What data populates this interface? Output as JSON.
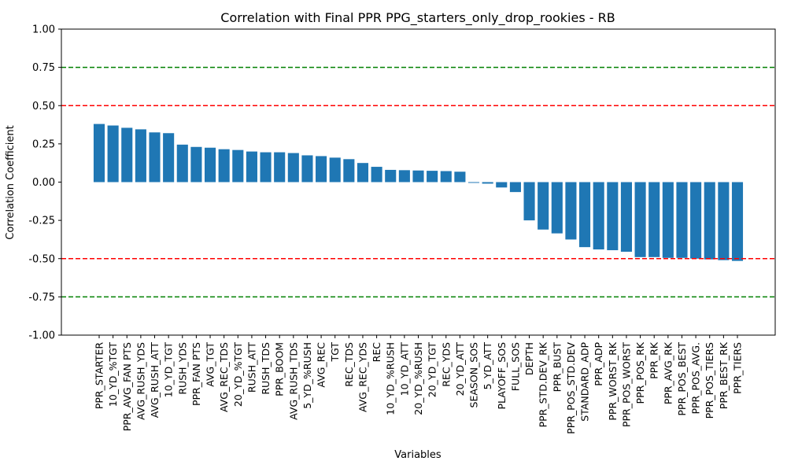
{
  "chart_data": {
    "type": "bar",
    "title": "Correlation with Final PPR PPG_starters_only_drop_rookies - RB",
    "xlabel": "Variables",
    "ylabel": "Correlation Coefficient",
    "ylim": [
      -1.0,
      1.0
    ],
    "yticks": [
      "-1.00",
      "-0.75",
      "-0.50",
      "-0.25",
      "0.00",
      "0.25",
      "0.50",
      "0.75",
      "1.00"
    ],
    "bar_color": "#1f77b4",
    "grid": false,
    "categories": [
      "PPR_STARTER",
      "10_YD_%TGT",
      "PPR_AVG_FAN PTS",
      "AVG_RUSH_YDS",
      "AVG_RUSH_ATT",
      "10_YD_TGT",
      "RUSH_YDS",
      "PPR_FAN PTS",
      "AVG_TGT",
      "AVG_REC_TDS",
      "20_YD_%TGT",
      "RUSH_ATT",
      "RUSH_TDS",
      "PPR_BOOM",
      "AVG_RUSH_TDS",
      "5_YD_%RUSH",
      "AVG_REC",
      "TGT",
      "REC_TDS",
      "AVG_REC_YDS",
      "REC",
      "10_YD_%RUSH",
      "10_YD_ATT",
      "20_YD_%RUSH",
      "20_YD_TGT",
      "REC_YDS",
      "20_YD_ATT",
      "SEASON_SOS",
      "5_YD_ATT",
      "PLAYOFF_SOS",
      "FULL_SOS",
      "DEPTH",
      "PPR_STD.DEV_RK",
      "PPR_BUST",
      "PPR_POS_STD.DEV",
      "STANDARD_ADP",
      "PPR_ADP",
      "PPR_WORST_RK",
      "PPR_POS_WORST",
      "PPR_POS_RK",
      "PPR_RK",
      "PPR_AVG_RK",
      "PPR_POS_BEST",
      "PPR_POS_AVG.",
      "PPR_POS_TIERS",
      "PPR_BEST_RK",
      "PPR_TIERS"
    ],
    "values": [
      0.38,
      0.37,
      0.355,
      0.345,
      0.325,
      0.32,
      0.245,
      0.23,
      0.225,
      0.215,
      0.21,
      0.2,
      0.195,
      0.195,
      0.19,
      0.175,
      0.17,
      0.16,
      0.15,
      0.125,
      0.1,
      0.08,
      0.078,
      0.076,
      0.074,
      0.072,
      0.068,
      -0.005,
      -0.01,
      -0.035,
      -0.065,
      -0.25,
      -0.31,
      -0.335,
      -0.375,
      -0.425,
      -0.44,
      -0.445,
      -0.455,
      -0.49,
      -0.49,
      -0.495,
      -0.495,
      -0.5,
      -0.505,
      -0.51,
      -0.515
    ],
    "reference_lines": [
      {
        "y": 0.75,
        "color": "#008000",
        "style": "dashed"
      },
      {
        "y": 0.5,
        "color": "#ff0000",
        "style": "dashed"
      },
      {
        "y": -0.5,
        "color": "#ff0000",
        "style": "dashed"
      },
      {
        "y": -0.75,
        "color": "#008000",
        "style": "dashed"
      }
    ]
  }
}
